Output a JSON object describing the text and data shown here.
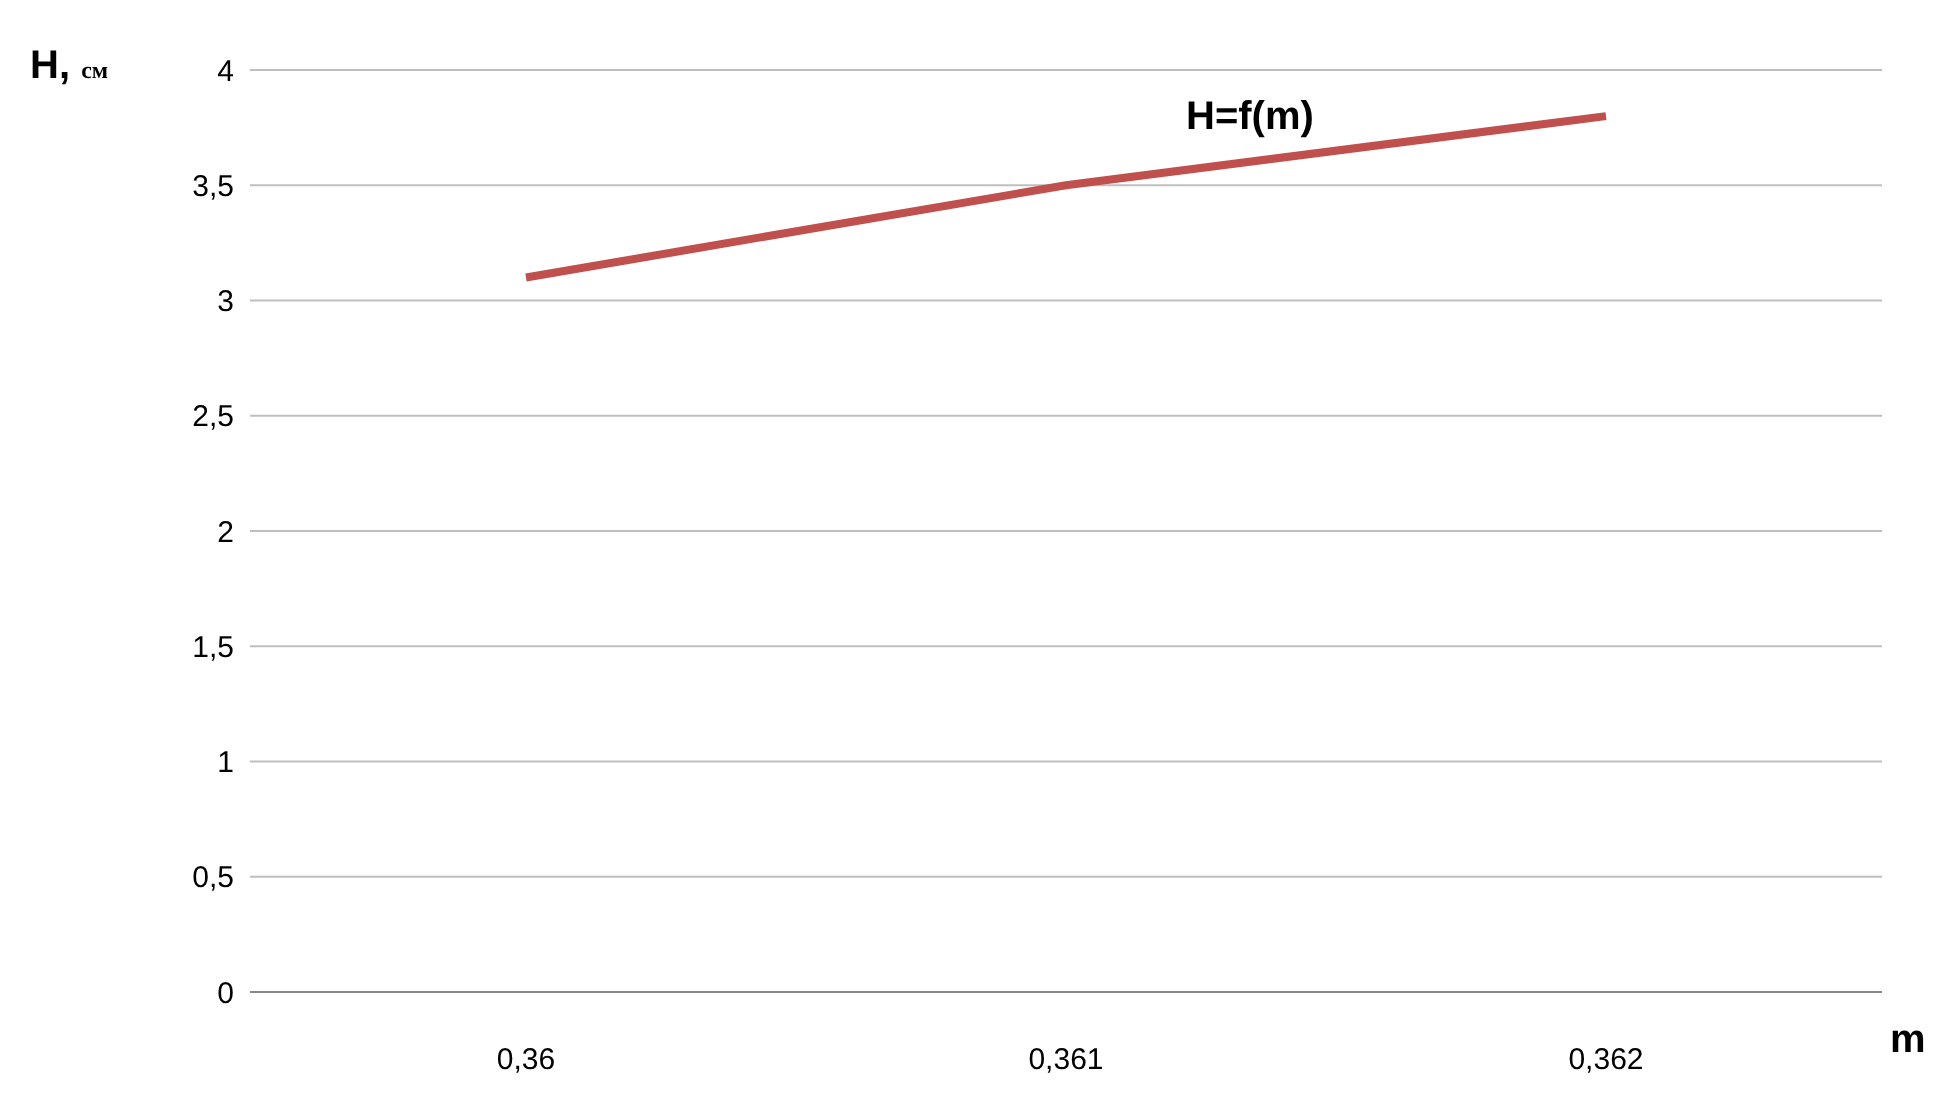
{
  "chart_data": {
    "type": "line",
    "xlabel": "m",
    "ylabel": "H, $_{см}$",
    "categories": [
      "0,36",
      "0,361",
      "0,362"
    ],
    "series": [
      {
        "name": "H=f(m)",
        "color": "#c0504d",
        "values": [
          3.1,
          3.5,
          3.8
        ]
      }
    ],
    "ylim": [
      0,
      4
    ],
    "yticks": [
      0,
      {
        "value": 0.5,
        "label": "0,5"
      },
      1,
      {
        "value": 1.5,
        "label": "1,5"
      },
      2,
      {
        "value": 2.5,
        "label": "2,5"
      },
      3,
      {
        "value": 3.5,
        "label": "3,5"
      },
      4
    ],
    "grid": "y",
    "legend": false,
    "marker": "none",
    "line_style": "solid"
  }
}
